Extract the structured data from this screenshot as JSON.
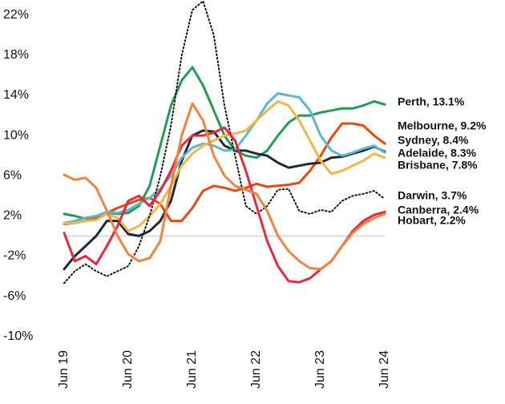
{
  "chart_data": {
    "type": "line",
    "categories": [
      "Jun 19",
      null,
      null,
      null,
      null,
      null,
      "Jun 20",
      null,
      null,
      null,
      null,
      null,
      "Jun 21",
      null,
      null,
      null,
      null,
      null,
      "Jun 22",
      null,
      null,
      null,
      null,
      null,
      "Jun 23",
      null,
      null,
      null,
      null,
      null,
      "Jun 24"
    ],
    "ylim": [
      -10.5,
      23.5
    ],
    "yticks": [
      {
        "value": 22,
        "label": "22%"
      },
      {
        "value": 18,
        "label": "18%"
      },
      {
        "value": 14,
        "label": "14%"
      },
      {
        "value": 10,
        "label": "10%"
      },
      {
        "value": 6,
        "label": "6%"
      },
      {
        "value": 2,
        "label": "2%"
      },
      {
        "value": -2,
        "label": "-2%"
      },
      {
        "value": -6,
        "label": "-6%"
      },
      {
        "value": -10,
        "label": "-10%"
      }
    ],
    "series": [
      {
        "name": "Perth, 13.1%",
        "color": "#1f9d55",
        "values": [
          2.2,
          2.0,
          1.7,
          2.0,
          2.3,
          2.2,
          2.3,
          3.0,
          5,
          9,
          13,
          15.5,
          16.8,
          15,
          12.5,
          10,
          8.5,
          8.0,
          7.8,
          8.5,
          10,
          11.3,
          12,
          12,
          12.3,
          12.5,
          12.7,
          12.7,
          13,
          13.4,
          13.1
        ]
      },
      {
        "name": "Melbourne, 9.2%",
        "color": "#e84a0c",
        "values": [
          1.2,
          1.3,
          1.5,
          1.8,
          2.3,
          2.8,
          3.2,
          3.6,
          3.8,
          3.2,
          1.5,
          1.5,
          2.8,
          4.5,
          5,
          4.8,
          4.5,
          4.8,
          5.2,
          4.9,
          5.0,
          5.1,
          5.3,
          6.5,
          8,
          9.8,
          11.2,
          11.2,
          11.0,
          10.0,
          9.2
        ]
      },
      {
        "name": "Sydney, 8.4%",
        "color": "#1e2a3a",
        "values": [
          -3.3,
          -2,
          -1,
          0,
          1.5,
          1.5,
          0.2,
          0,
          0.5,
          1.5,
          3.5,
          7.5,
          10,
          10.5,
          10.4,
          9,
          8.5,
          8.5,
          8.2,
          8,
          7.3,
          6.8,
          7,
          7.2,
          7.3,
          7.8,
          7.9,
          8.2,
          8.5,
          8.9,
          8.4
        ]
      },
      {
        "name": "Adelaide, 8.3%",
        "color": "#5cb8cc",
        "values": [
          1.3,
          1.5,
          1.8,
          2.0,
          2.4,
          2.3,
          2.6,
          3.2,
          3.8,
          4.7,
          6,
          7.8,
          8.8,
          9.2,
          9.0,
          8.5,
          8.6,
          10,
          11.5,
          13.2,
          14.2,
          14.0,
          13.8,
          12.5,
          10,
          8.5,
          8.0,
          8.3,
          8.7,
          9.0,
          8.3
        ]
      },
      {
        "name": "Brisbane, 7.8%",
        "color": "#f2b846",
        "values": [
          1.3,
          1.3,
          1.5,
          1.6,
          2.2,
          1.8,
          0.5,
          1,
          2,
          3.2,
          5,
          7,
          8.2,
          9,
          9.5,
          10,
          10.2,
          10.5,
          11.5,
          12.5,
          13.4,
          13,
          11.5,
          9.5,
          7.5,
          6.2,
          6.5,
          7,
          7.5,
          8.2,
          7.8
        ]
      },
      {
        "name": "Darwin, 3.7%",
        "color": "#111111",
        "dash": true,
        "values": [
          -4.7,
          -3.5,
          -2.8,
          -3.5,
          -4,
          -3.5,
          -3,
          -1,
          2,
          6,
          11,
          18,
          22.5,
          23.4,
          20,
          13,
          8,
          3,
          2.2,
          3,
          4.6,
          4.7,
          2.5,
          2.2,
          2.6,
          2.4,
          3.5,
          4,
          4.2,
          4.5,
          3.7
        ]
      },
      {
        "name": "Canberra, 2.4%",
        "color": "#e6293f",
        "values": [
          0.3,
          -2.5,
          -2,
          -2.8,
          -1,
          1,
          3.5,
          4,
          3,
          4.5,
          6.5,
          9,
          10,
          10,
          10.3,
          10.8,
          9.5,
          6.5,
          3,
          -0.5,
          -3,
          -4.5,
          -4.6,
          -4.2,
          -3.3,
          -2.5,
          -1,
          0.5,
          1.5,
          2.1,
          2.4
        ]
      },
      {
        "name": "Hobart, 2.2%",
        "color": "#f0843a",
        "values": [
          6.1,
          5.6,
          5.8,
          4.8,
          2.5,
          0,
          -1.8,
          -2.5,
          -2.2,
          -0.5,
          5,
          10,
          13.2,
          11.5,
          8,
          6,
          5,
          4.6,
          4.2,
          2.5,
          0,
          -1.5,
          -2.5,
          -3.2,
          -3.3,
          -2.5,
          -1,
          0.3,
          1.2,
          1.8,
          2.2
        ]
      }
    ]
  }
}
